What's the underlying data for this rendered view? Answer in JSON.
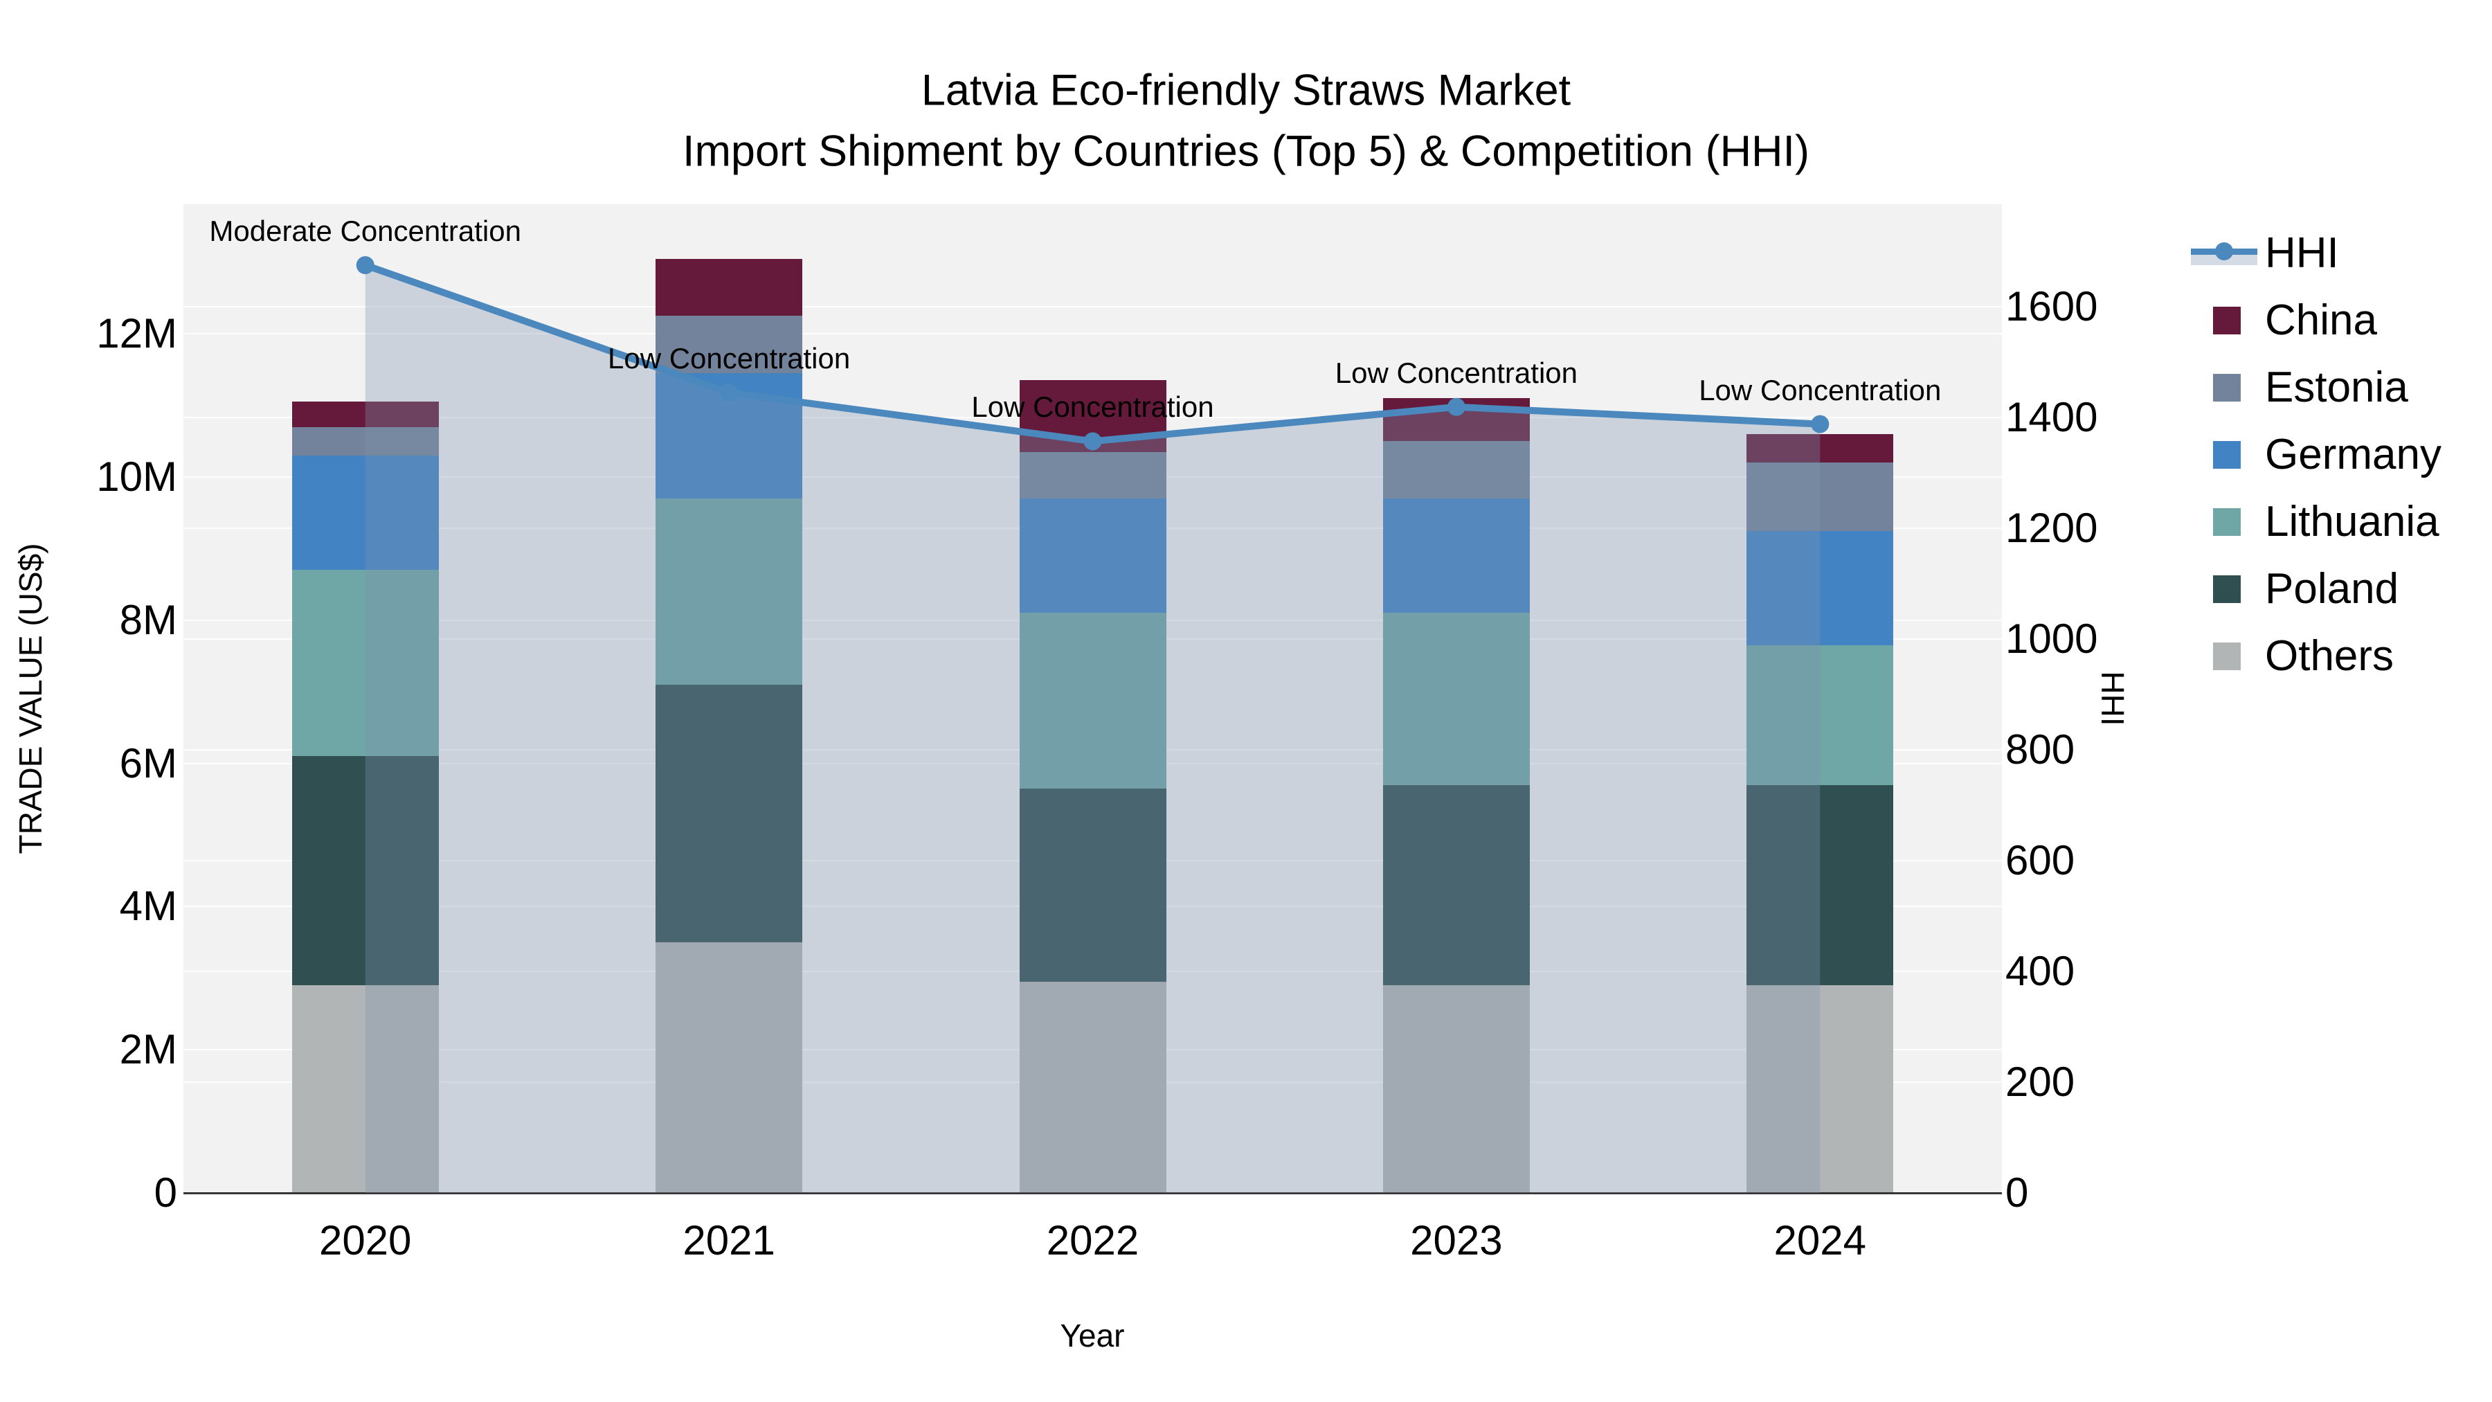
{
  "title": {
    "line1": "Latvia Eco-friendly Straws Market",
    "line2": "Import Shipment by Countries (Top 5) & Competition (HHI)"
  },
  "axes": {
    "left": {
      "title": "TRADE VALUE (US$)",
      "ticks": [
        {
          "label": "0",
          "value": 0
        },
        {
          "label": "2M",
          "value": 2
        },
        {
          "label": "4M",
          "value": 4
        },
        {
          "label": "6M",
          "value": 6
        },
        {
          "label": "8M",
          "value": 8
        },
        {
          "label": "10M",
          "value": 10
        },
        {
          "label": "12M",
          "value": 12
        }
      ]
    },
    "right": {
      "title": "HHI",
      "ticks": [
        {
          "label": "0",
          "value": 0
        },
        {
          "label": "200",
          "value": 200
        },
        {
          "label": "400",
          "value": 400
        },
        {
          "label": "600",
          "value": 600
        },
        {
          "label": "800",
          "value": 800
        },
        {
          "label": "1000",
          "value": 1000
        },
        {
          "label": "1200",
          "value": 1200
        },
        {
          "label": "1400",
          "value": 1400
        },
        {
          "label": "1600",
          "value": 1600
        }
      ]
    },
    "x": {
      "title": "Year"
    }
  },
  "chart_data": {
    "type": "stacked-bar+line",
    "unit_bars": "million US$ (trade value)",
    "unit_line": "HHI index (right axis)",
    "categories": [
      "2020",
      "2021",
      "2022",
      "2023",
      "2024"
    ],
    "bar_series": [
      {
        "name": "Others",
        "color": "#B2B5B6",
        "values": [
          2.9,
          3.5,
          2.95,
          2.9,
          2.9
        ]
      },
      {
        "name": "Poland",
        "color": "#2F4F51",
        "values": [
          3.2,
          3.6,
          2.7,
          2.8,
          2.8
        ]
      },
      {
        "name": "Lithuania",
        "color": "#6EA7A6",
        "values": [
          2.6,
          2.6,
          2.45,
          2.4,
          1.95
        ]
      },
      {
        "name": "Germany",
        "color": "#4183C3",
        "values": [
          1.6,
          1.75,
          1.6,
          1.6,
          1.6
        ]
      },
      {
        "name": "Estonia",
        "color": "#73839B",
        "values": [
          0.4,
          0.8,
          0.65,
          0.8,
          0.95
        ]
      },
      {
        "name": "China",
        "color": "#651A3B",
        "values": [
          0.35,
          0.8,
          1.0,
          0.6,
          0.4
        ]
      }
    ],
    "bar_totals": [
      11.05,
      13.05,
      11.35,
      11.1,
      10.6
    ],
    "line_series": {
      "name": "HHI",
      "axis": "right",
      "color": "#4A88BD",
      "fill_color": "rgba(126,145,173,0.33)",
      "values": [
        1675,
        1445,
        1357,
        1419,
        1388
      ]
    },
    "point_annotations": [
      "Moderate Concentration",
      "Low Concentration",
      "Low Concentration",
      "Low Concentration",
      "Low Concentration"
    ],
    "ylim_left_millions": [
      0,
      13.8
    ],
    "ylim_right": [
      0,
      1785
    ],
    "grid": "horizontal gridlines for both y axes",
    "legend_position": "right"
  },
  "legend": {
    "items": [
      {
        "label": "HHI",
        "type": "line"
      },
      {
        "label": "China",
        "type": "swatch"
      },
      {
        "label": "Estonia",
        "type": "swatch"
      },
      {
        "label": "Germany",
        "type": "swatch"
      },
      {
        "label": "Lithuania",
        "type": "swatch"
      },
      {
        "label": "Poland",
        "type": "swatch"
      },
      {
        "label": "Others",
        "type": "swatch"
      }
    ]
  }
}
